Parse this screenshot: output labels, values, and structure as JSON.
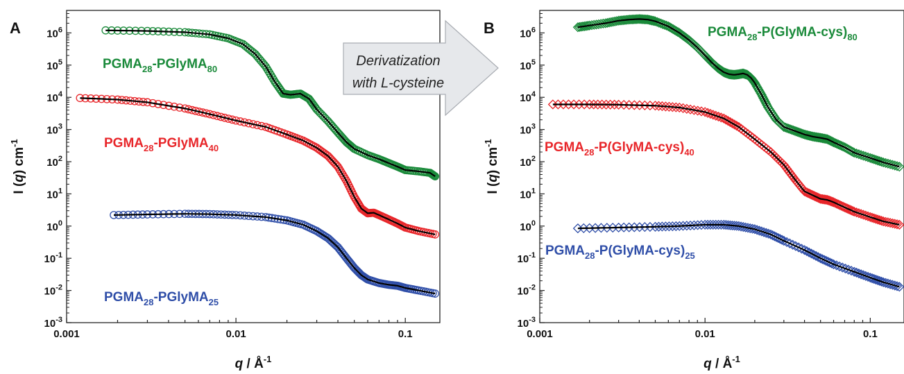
{
  "arrow": {
    "line1": "Derivatization",
    "line2": "with L-cysteine"
  },
  "chart_data": [
    {
      "panel": "A",
      "type": "line",
      "x_scale": "log",
      "y_scale": "log",
      "xlim": [
        0.001,
        0.16
      ],
      "ylim": [
        0.001,
        5000000
      ],
      "xticks": [
        "0.001",
        "0.01",
        "0.1"
      ],
      "yticks": [
        {
          "base": "10",
          "exp": "-3"
        },
        {
          "base": "10",
          "exp": "-2"
        },
        {
          "base": "10",
          "exp": "-1"
        },
        {
          "base": "10",
          "exp": "0"
        },
        {
          "base": "10",
          "exp": "1"
        },
        {
          "base": "10",
          "exp": "2"
        },
        {
          "base": "10",
          "exp": "3"
        },
        {
          "base": "10",
          "exp": "4"
        },
        {
          "base": "10",
          "exp": "5"
        },
        {
          "base": "10",
          "exp": "6"
        }
      ],
      "xlabel": {
        "q": "q",
        "rest": " / Å",
        "exp": "-1"
      },
      "ylabel": {
        "pre": "I (",
        "q": "q",
        "post": ") cm",
        "exp": "-1"
      },
      "marker": "circle",
      "grid": false,
      "series": [
        {
          "label_parts": [
            "PGMA",
            "28",
            "-PGlyMA",
            "80"
          ],
          "color": "#1a8a3a",
          "x": [
            0.0017,
            0.003,
            0.005,
            0.007,
            0.009,
            0.011,
            0.013,
            0.015,
            0.017,
            0.019,
            0.021,
            0.024,
            0.027,
            0.03,
            0.035,
            0.04,
            0.045,
            0.05,
            0.06,
            0.07,
            0.08,
            0.09,
            0.1,
            0.12,
            0.14,
            0.15
          ],
          "y": [
            1200000,
            1150000,
            1050000,
            900000,
            680000,
            450000,
            220000,
            90000,
            30000,
            13000,
            12000,
            13000,
            9000,
            4200,
            1800,
            800,
            400,
            250,
            160,
            120,
            90,
            70,
            55,
            50,
            45,
            35
          ]
        },
        {
          "label_parts": [
            "PGMA",
            "28",
            "-PGlyMA",
            "40"
          ],
          "color": "#e8262a",
          "x": [
            0.0012,
            0.002,
            0.003,
            0.005,
            0.007,
            0.01,
            0.015,
            0.02,
            0.025,
            0.03,
            0.035,
            0.04,
            0.045,
            0.05,
            0.055,
            0.06,
            0.065,
            0.07,
            0.08,
            0.09,
            0.1,
            0.12,
            0.15
          ],
          "y": [
            9500,
            8500,
            7000,
            4500,
            3000,
            1900,
            1200,
            700,
            450,
            270,
            150,
            70,
            25,
            8,
            3.5,
            2.5,
            2.6,
            2.2,
            1.6,
            1.2,
            0.9,
            0.7,
            0.55
          ]
        },
        {
          "label_parts": [
            "PGMA",
            "28",
            "-PGlyMA",
            "25"
          ],
          "color": "#2f4ea8",
          "x": [
            0.0019,
            0.003,
            0.005,
            0.007,
            0.01,
            0.015,
            0.02,
            0.025,
            0.03,
            0.035,
            0.04,
            0.045,
            0.05,
            0.055,
            0.06,
            0.07,
            0.08,
            0.09,
            0.1,
            0.12,
            0.15
          ],
          "y": [
            2.2,
            2.3,
            2.4,
            2.35,
            2.2,
            1.9,
            1.5,
            1.1,
            0.7,
            0.42,
            0.22,
            0.1,
            0.05,
            0.03,
            0.022,
            0.017,
            0.015,
            0.014,
            0.012,
            0.01,
            0.008
          ]
        }
      ]
    },
    {
      "panel": "B",
      "type": "line",
      "x_scale": "log",
      "y_scale": "log",
      "xlim": [
        0.001,
        0.16
      ],
      "ylim": [
        0.001,
        5000000
      ],
      "xticks": [
        "0.001",
        "0.01",
        "0.1"
      ],
      "yticks": [
        {
          "base": "10",
          "exp": "-3"
        },
        {
          "base": "10",
          "exp": "-2"
        },
        {
          "base": "10",
          "exp": "-1"
        },
        {
          "base": "10",
          "exp": "0"
        },
        {
          "base": "10",
          "exp": "1"
        },
        {
          "base": "10",
          "exp": "2"
        },
        {
          "base": "10",
          "exp": "3"
        },
        {
          "base": "10",
          "exp": "4"
        },
        {
          "base": "10",
          "exp": "5"
        },
        {
          "base": "10",
          "exp": "6"
        }
      ],
      "xlabel": {
        "q": "q",
        "rest": " / Å",
        "exp": "-1"
      },
      "ylabel": {
        "pre": "I (",
        "q": "q",
        "post": ") cm",
        "exp": "-1"
      },
      "marker": "diamond",
      "grid": false,
      "series": [
        {
          "label_parts": [
            "PGMA",
            "28",
            "-P(GlyMA-cys)",
            "80"
          ],
          "color": "#1a8a3a",
          "x": [
            0.0017,
            0.002,
            0.0025,
            0.003,
            0.0035,
            0.004,
            0.0045,
            0.005,
            0.006,
            0.007,
            0.008,
            0.009,
            0.01,
            0.011,
            0.012,
            0.013,
            0.014,
            0.015,
            0.016,
            0.017,
            0.018,
            0.019,
            0.02,
            0.022,
            0.024,
            0.027,
            0.03,
            0.035,
            0.04,
            0.045,
            0.05,
            0.055,
            0.06,
            0.07,
            0.08,
            0.1,
            0.12,
            0.15
          ],
          "y": [
            1500000,
            1700000,
            2000000,
            2400000,
            2600000,
            2700000,
            2600000,
            2300000,
            1600000,
            1000000,
            600000,
            350000,
            200000,
            120000,
            80000,
            60000,
            52000,
            50000,
            52000,
            55000,
            50000,
            40000,
            28000,
            12000,
            5000,
            2000,
            1200,
            900,
            700,
            600,
            550,
            500,
            400,
            280,
            190,
            130,
            95,
            70
          ]
        },
        {
          "label_parts": [
            "PGMA",
            "28",
            "-P(GlyMA-cys)",
            "40"
          ],
          "color": "#e8262a",
          "x": [
            0.0012,
            0.002,
            0.003,
            0.005,
            0.007,
            0.01,
            0.013,
            0.016,
            0.02,
            0.025,
            0.03,
            0.035,
            0.04,
            0.045,
            0.05,
            0.055,
            0.06,
            0.07,
            0.08,
            0.1,
            0.12,
            0.15
          ],
          "y": [
            6000,
            6000,
            5900,
            5500,
            4800,
            3500,
            2200,
            1200,
            500,
            200,
            80,
            28,
            12,
            9,
            7,
            6.5,
            5.5,
            3.8,
            2.8,
            1.9,
            1.4,
            1.1
          ]
        },
        {
          "label_parts": [
            "PGMA",
            "28",
            "-P(GlyMA-cys)",
            "25"
          ],
          "color": "#2f4ea8",
          "x": [
            0.0017,
            0.003,
            0.005,
            0.007,
            0.01,
            0.013,
            0.016,
            0.02,
            0.025,
            0.03,
            0.04,
            0.05,
            0.06,
            0.08,
            0.1,
            0.12,
            0.15
          ],
          "y": [
            0.85,
            0.9,
            0.95,
            1.0,
            1.1,
            1.1,
            1.0,
            0.8,
            0.55,
            0.35,
            0.18,
            0.1,
            0.065,
            0.038,
            0.025,
            0.018,
            0.013
          ]
        }
      ]
    }
  ]
}
